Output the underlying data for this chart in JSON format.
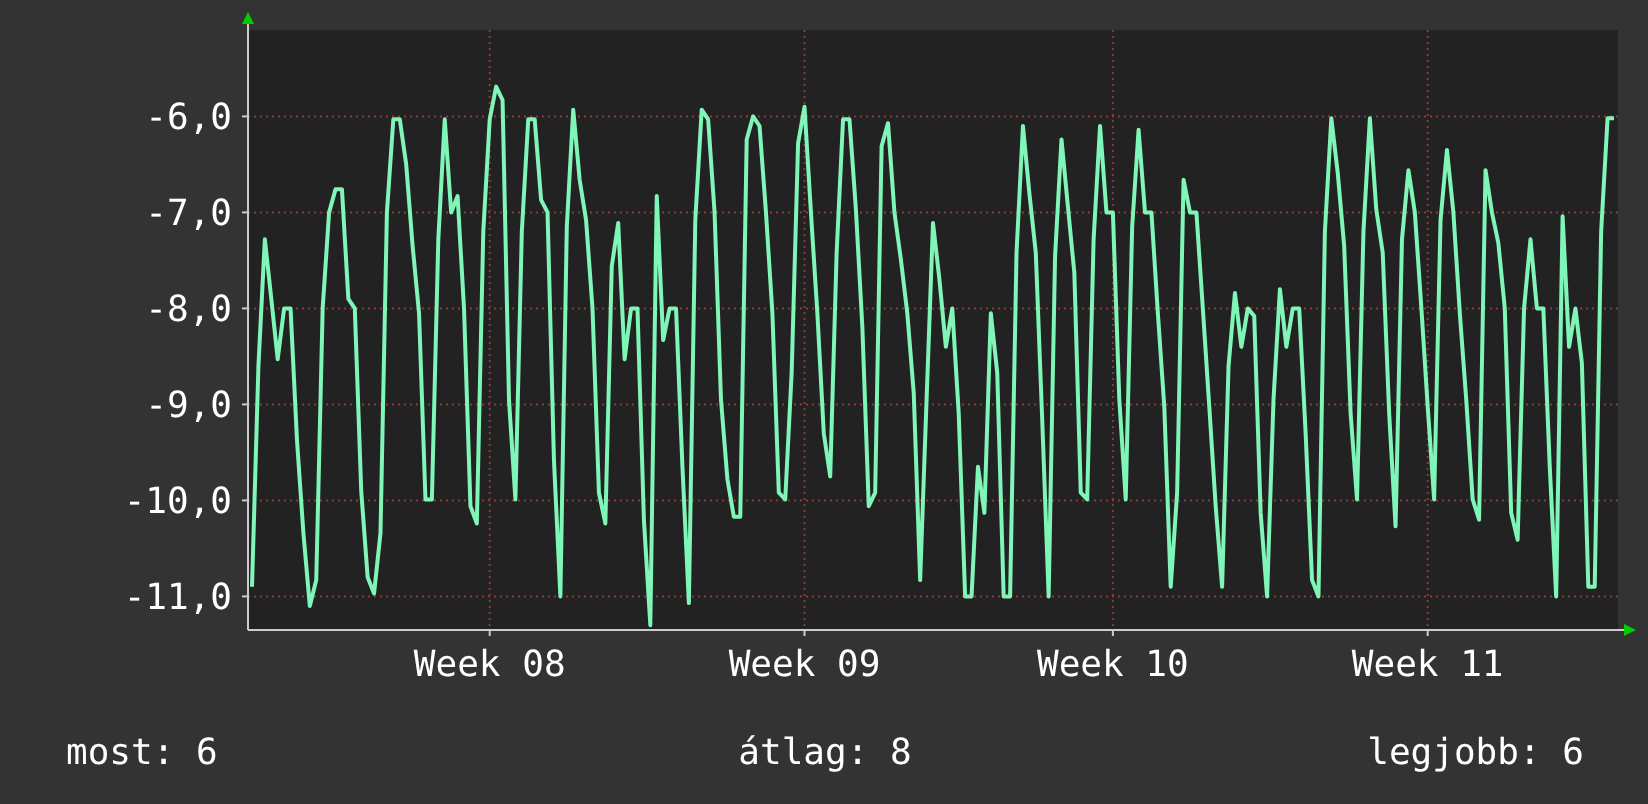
{
  "chart_data": {
    "type": "line",
    "categories": [
      null,
      null,
      null,
      null,
      null,
      null,
      null,
      null,
      null,
      null,
      null,
      null,
      null,
      null,
      null,
      null,
      null,
      null,
      null,
      null,
      null,
      null,
      null,
      null,
      null,
      null,
      null,
      null,
      null,
      null,
      null,
      null,
      null,
      null,
      null,
      null,
      null,
      "Week 08",
      null,
      null,
      null,
      null,
      null,
      null,
      null,
      null,
      null,
      null,
      null,
      null,
      null,
      null,
      null,
      null,
      null,
      null,
      null,
      null,
      null,
      null,
      null,
      null,
      null,
      null,
      null,
      null,
      null,
      null,
      null,
      null,
      null,
      null,
      null,
      null,
      null,
      null,
      null,
      null,
      null,
      null,
      null,
      null,
      null,
      null,
      null,
      null,
      "Week 09",
      null,
      null,
      null,
      null,
      null,
      null,
      null,
      null,
      null,
      null,
      null,
      null,
      null,
      null,
      null,
      null,
      null,
      null,
      null,
      null,
      null,
      null,
      null,
      null,
      null,
      null,
      null,
      null,
      null,
      null,
      null,
      null,
      null,
      null,
      null,
      null,
      null,
      null,
      null,
      null,
      null,
      null,
      null,
      null,
      null,
      null,
      null,
      "Week 10",
      null,
      null,
      null,
      null,
      null,
      null,
      null,
      null,
      null,
      null,
      null,
      null,
      null,
      null,
      null,
      null,
      null,
      null,
      null,
      null,
      null,
      null,
      null,
      null,
      null,
      null,
      null,
      null,
      null,
      null,
      null,
      null,
      null,
      null,
      null,
      null,
      null,
      null,
      null,
      null,
      null,
      null,
      null,
      null,
      null,
      null,
      null,
      null,
      "Week 11",
      null,
      null,
      null,
      null,
      null,
      null,
      null,
      null,
      null,
      null,
      null,
      null,
      null,
      null,
      null,
      null,
      null,
      null,
      null,
      null,
      null,
      null,
      null,
      null,
      null,
      null,
      null,
      null,
      null
    ],
    "series": [
      {
        "color": "#7ff5b8",
        "values": [
          -10.9,
          -8.6,
          -7.28,
          -7.9,
          -8.53,
          -8.0,
          -8.0,
          -9.37,
          -10.34,
          -11.1,
          -10.83,
          -8.0,
          -7.0,
          -6.76,
          -6.76,
          -7.9,
          -8.0,
          -9.9,
          -10.8,
          -10.97,
          -10.34,
          -7.0,
          -6.03,
          -6.03,
          -6.5,
          -7.35,
          -8.05,
          -9.99,
          -9.99,
          -7.28,
          -6.03,
          -7.0,
          -6.83,
          -8.0,
          -10.06,
          -10.24,
          -7.2,
          -6.03,
          -5.69,
          -5.83,
          -8.95,
          -9.99,
          -7.2,
          -6.03,
          -6.03,
          -6.87,
          -7.0,
          -9.58,
          -11.0,
          -7.15,
          -5.93,
          -6.66,
          -7.08,
          -8.0,
          -9.92,
          -10.24,
          -7.56,
          -7.11,
          -8.53,
          -8.0,
          -8.0,
          -10.2,
          -11.3,
          -6.83,
          -8.33,
          -8.0,
          -8.0,
          -9.65,
          -11.07,
          -7.08,
          -5.93,
          -6.03,
          -7.0,
          -8.95,
          -9.78,
          -10.17,
          -10.17,
          -6.24,
          -6.0,
          -6.1,
          -7.0,
          -8.05,
          -9.92,
          -9.99,
          -8.67,
          -6.28,
          -5.9,
          -7.0,
          -8.05,
          -9.3,
          -9.75,
          -7.42,
          -6.03,
          -6.03,
          -6.97,
          -8.19,
          -10.06,
          -9.92,
          -6.31,
          -6.07,
          -7.0,
          -7.49,
          -8.05,
          -8.88,
          -10.83,
          -8.95,
          -7.11,
          -7.7,
          -8.4,
          -8.0,
          -9.09,
          -11.0,
          -11.0,
          -9.65,
          -10.13,
          -8.05,
          -8.67,
          -11.0,
          -11.0,
          -7.42,
          -6.1,
          -6.8,
          -7.42,
          -9.16,
          -11.0,
          -7.46,
          -6.24,
          -6.94,
          -7.63,
          -9.92,
          -9.99,
          -7.28,
          -6.1,
          -7.0,
          -7.0,
          -8.95,
          -9.99,
          -7.15,
          -6.14,
          -7.0,
          -7.0,
          -8.05,
          -9.02,
          -10.9,
          -9.92,
          -6.66,
          -7.0,
          -7.0,
          -8.0,
          -9.02,
          -10.06,
          -10.9,
          -8.6,
          -7.84,
          -8.4,
          -8.0,
          -8.08,
          -10.13,
          -11.0,
          -8.95,
          -7.8,
          -8.4,
          -8.0,
          -8.0,
          -9.3,
          -10.83,
          -11.0,
          -7.2,
          -6.02,
          -6.59,
          -7.35,
          -9.09,
          -9.99,
          -7.2,
          -6.02,
          -6.97,
          -7.42,
          -9.09,
          -10.27,
          -7.28,
          -6.56,
          -7.0,
          -7.98,
          -9.02,
          -9.99,
          -7.08,
          -6.35,
          -7.0,
          -8.05,
          -8.95,
          -9.99,
          -10.2,
          -6.56,
          -7.0,
          -7.32,
          -8.0,
          -10.13,
          -10.41,
          -8.0,
          -7.28,
          -8.0,
          -8.0,
          -9.65,
          -11.0,
          -7.04,
          -8.4,
          -8.0,
          -8.57,
          -10.9,
          -10.9,
          -7.2,
          -6.02,
          -6.02
        ]
      }
    ],
    "ylim": [
      -11.35,
      -5.1
    ],
    "yticks": [
      {
        "value": -6,
        "label": "-6,0"
      },
      {
        "value": -7,
        "label": "-7,0"
      },
      {
        "value": -8,
        "label": "-8,0"
      },
      {
        "value": -9,
        "label": "-9,0"
      },
      {
        "value": -10,
        "label": "-10,0"
      },
      {
        "value": -11,
        "label": "-11,0"
      }
    ],
    "grid": true,
    "line_style": "solid",
    "marker": "none",
    "annotations": [
      "most: 6",
      "átlag: 8",
      "legjobb: 6"
    ]
  }
}
